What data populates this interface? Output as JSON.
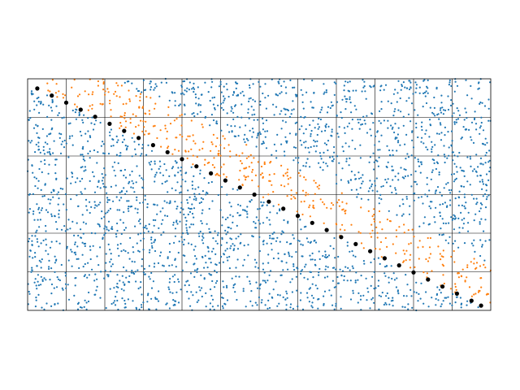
{
  "chart_data": {
    "type": "scatter",
    "title": "",
    "xlabel": "",
    "ylabel": "",
    "xlim": [
      0,
      12
    ],
    "ylim": [
      0,
      6
    ],
    "grid": true,
    "grid_spacing": 1,
    "axis_ticks": false,
    "series": [
      {
        "color": "#1f77b4",
        "role": "background-points",
        "marker": "small-dot",
        "count": 2400,
        "distribution": "uniform",
        "x_range": [
          0,
          12
        ],
        "y_range": [
          0,
          6
        ]
      },
      {
        "color": "#ff7f0e",
        "role": "band-points",
        "marker": "small-dot",
        "count": 420,
        "distribution": "uniform-band",
        "band_lower_line": {
          "x": [
            0.25,
            11.75
          ],
          "y": [
            5.75,
            0.125
          ]
        },
        "band_width_y": [
          0.0,
          1.2
        ]
      },
      {
        "color": "#000000",
        "role": "line-points",
        "marker": "large-dot",
        "x": [
          0.25,
          0.625,
          1.0,
          1.375,
          1.75,
          2.125,
          2.5,
          2.875,
          3.25,
          3.625,
          4.0,
          4.375,
          4.75,
          5.125,
          5.5,
          5.875,
          6.25,
          6.625,
          7.0,
          7.375,
          7.75,
          8.125,
          8.5,
          8.875,
          9.25,
          9.625,
          10.0,
          10.375,
          10.75,
          11.125,
          11.5,
          11.75
        ],
        "y": [
          5.75,
          5.567,
          5.383,
          5.2,
          5.017,
          4.833,
          4.65,
          4.467,
          4.283,
          4.1,
          3.917,
          3.733,
          3.55,
          3.367,
          3.183,
          3.0,
          2.817,
          2.633,
          2.45,
          2.267,
          2.083,
          1.9,
          1.717,
          1.533,
          1.35,
          1.167,
          0.983,
          0.8,
          0.617,
          0.433,
          0.25,
          0.125
        ]
      }
    ]
  }
}
